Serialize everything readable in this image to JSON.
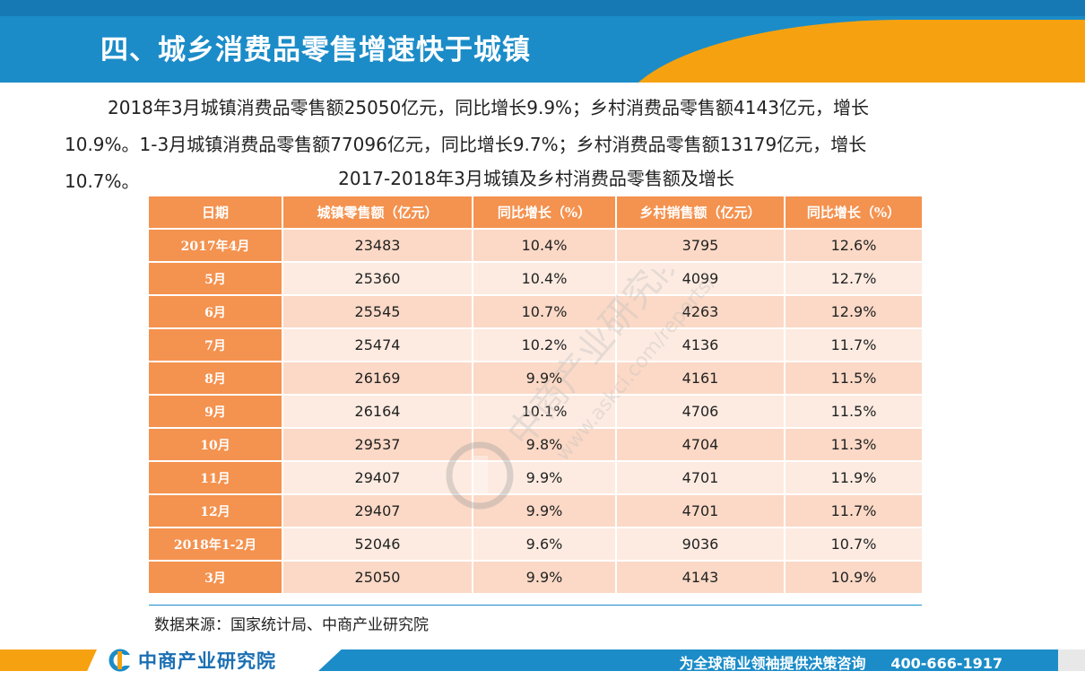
{
  "header": {
    "title": "四、城乡消费品零售增速快于城镇"
  },
  "paragraph": {
    "line1": "2018年3月城镇消费品零售额25050亿元，同比增长9.9%；乡村消费品零售额4143亿元，增长",
    "line2": "10.9%。1-3月城镇消费品零售额77096亿元，同比增长9.7%；乡村消费品零售额13179亿元，增长",
    "line3": "10.7%。"
  },
  "table": {
    "title": "2017-2018年3月城镇及乡村消费品零售额及增长",
    "headers": [
      "日期",
      "城镇零售额（亿元）",
      "同比增长（%）",
      "乡村销售额（亿元）",
      "同比增长（%）"
    ],
    "rows": [
      [
        "2017年4月",
        "23483",
        "10.4%",
        "3795",
        "12.6%"
      ],
      [
        "5月",
        "25360",
        "10.4%",
        "4099",
        "12.7%"
      ],
      [
        "6月",
        "25545",
        "10.7%",
        "4263",
        "12.9%"
      ],
      [
        "7月",
        "25474",
        "10.2%",
        "4136",
        "11.7%"
      ],
      [
        "8月",
        "26169",
        "9.9%",
        "4161",
        "11.5%"
      ],
      [
        "9月",
        "26164",
        "10.1%",
        "4706",
        "11.5%"
      ],
      [
        "10月",
        "29537",
        "9.8%",
        "4704",
        "11.3%"
      ],
      [
        "11月",
        "29407",
        "9.9%",
        "4701",
        "11.9%"
      ],
      [
        "12月",
        "29407",
        "9.9%",
        "4701",
        "11.7%"
      ],
      [
        "2018年1-2月",
        "52046",
        "9.6%",
        "9036",
        "10.7%"
      ],
      [
        "3月",
        "25050",
        "9.9%",
        "4143",
        "10.9%"
      ]
    ]
  },
  "source": "数据来源：国家统计局、中商产业研究院",
  "watermark": {
    "brand": "中商产业研究院",
    "url": "www.askci.com/reports/"
  },
  "footer": {
    "logo_text": "中商产业研究院",
    "slogan": "为全球商业领袖提供决策咨询",
    "phone": "400-666-1917"
  },
  "colors": {
    "blue": "#1b8cc8",
    "orange": "#f6a210",
    "table_header": "#f4924f",
    "row_dark": "#fbd9c6",
    "row_light": "#fdebe1"
  }
}
